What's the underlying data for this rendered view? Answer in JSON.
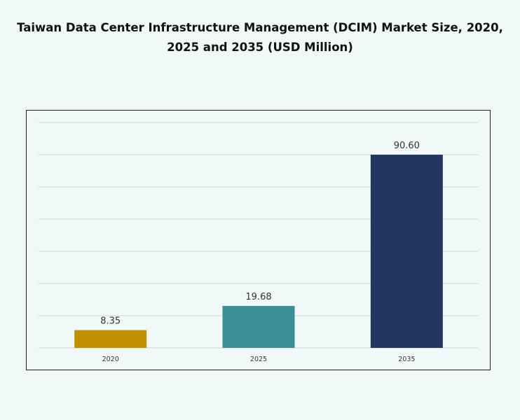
{
  "chart_data": {
    "type": "bar",
    "title": "Taiwan Data Center Infrastructure Management (DCIM) Market Size, 2020, 2025 and 2035 (USD Million)",
    "categories": [
      "2020",
      "2025",
      "2035"
    ],
    "values": [
      8.35,
      19.68,
      90.6
    ],
    "value_labels": [
      "8.35",
      "19.68",
      "90.60"
    ],
    "colors": [
      "#c08f00",
      "#3a8f97",
      "#22375f"
    ],
    "xlabel": "",
    "ylabel": "",
    "grid": true,
    "legend": "none"
  }
}
